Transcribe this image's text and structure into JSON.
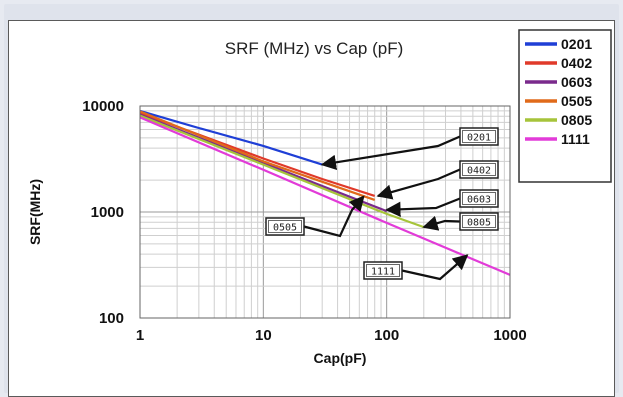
{
  "chart_data": {
    "type": "line",
    "title": "SRF (MHz) vs Cap (pF)",
    "xlabel": "Cap(pF)",
    "ylabel": "SRF(MHz)",
    "x_scale": "log",
    "y_scale": "log",
    "xlim": [
      1,
      1000
    ],
    "ylim": [
      100,
      10000
    ],
    "x_ticks": [
      "1",
      "10",
      "100",
      "1000"
    ],
    "y_ticks": [
      "10000",
      "1000",
      "100"
    ],
    "grid": true,
    "legend_position": "top-right",
    "series": [
      {
        "name": "0201",
        "color": "#1f3fd6",
        "points": [
          [
            1,
            9000
          ],
          [
            3,
            6200
          ],
          [
            10,
            4200
          ],
          [
            30,
            2800
          ]
        ]
      },
      {
        "name": "0402",
        "color": "#e03a2a",
        "points": [
          [
            1,
            8600
          ],
          [
            10,
            3200
          ],
          [
            30,
            2050
          ],
          [
            80,
            1420
          ]
        ]
      },
      {
        "name": "0603",
        "color": "#7a2a8c",
        "points": [
          [
            1,
            8300
          ],
          [
            10,
            2900
          ],
          [
            100,
            1020
          ]
        ]
      },
      {
        "name": "0505",
        "color": "#e06a1a",
        "points": [
          [
            1,
            8900
          ],
          [
            10,
            3000
          ],
          [
            80,
            1300
          ]
        ]
      },
      {
        "name": "0805",
        "color": "#a6c43a",
        "points": [
          [
            1,
            8100
          ],
          [
            10,
            2800
          ],
          [
            100,
            960
          ],
          [
            200,
            720
          ]
        ]
      },
      {
        "name": "1111",
        "color": "#e23bd8",
        "points": [
          [
            1,
            7800
          ],
          [
            10,
            2500
          ],
          [
            100,
            790
          ],
          [
            1000,
            255
          ]
        ]
      }
    ],
    "annotations": [
      {
        "label": "0201",
        "target": [
          30,
          2800
        ]
      },
      {
        "label": "0402",
        "target": [
          85,
          1420
        ]
      },
      {
        "label": "0603",
        "target": [
          100,
          1050
        ]
      },
      {
        "label": "0505",
        "target": [
          65,
          1400
        ]
      },
      {
        "label": "0805",
        "target": [
          200,
          720
        ]
      },
      {
        "label": "1111",
        "target": [
          450,
          390
        ]
      }
    ]
  }
}
